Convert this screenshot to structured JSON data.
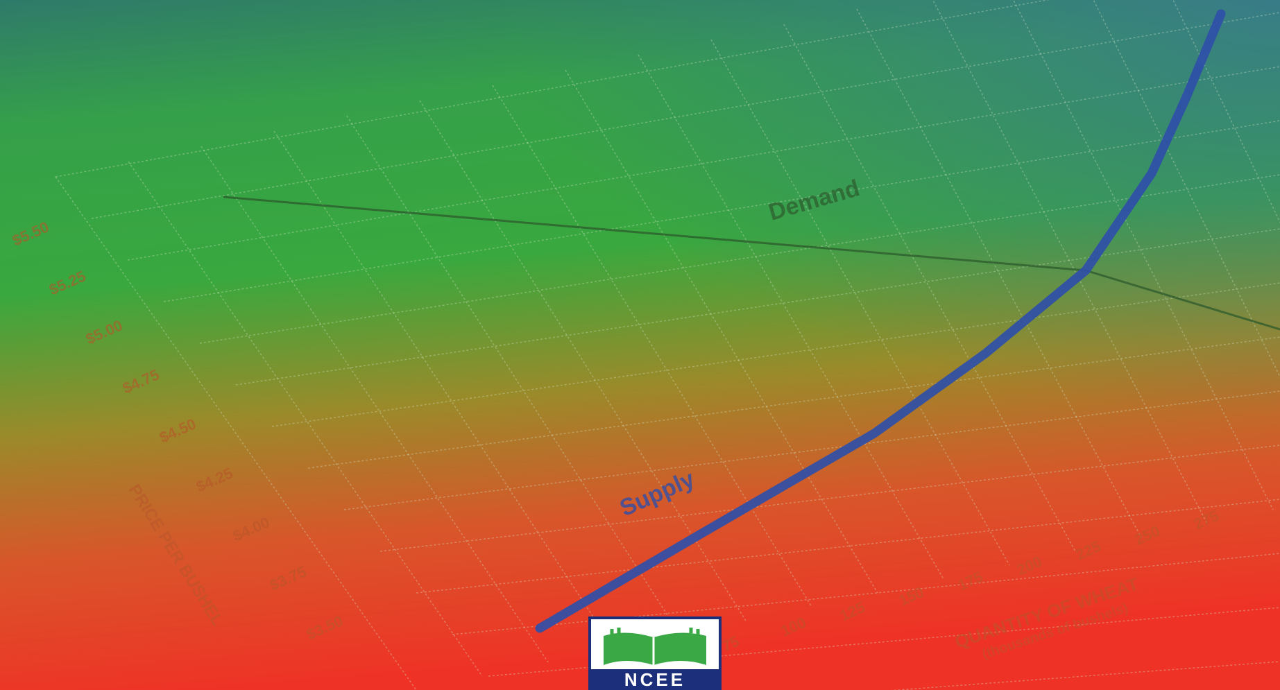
{
  "chart_data": {
    "type": "line",
    "y_tick_labels": [
      "$5.50",
      "$5.25",
      "$5.00",
      "$4.75",
      "$4.50",
      "$4.25",
      "$4.00",
      "$3.75",
      "$3.50"
    ],
    "y_axis_label": "PRICE PER BUSHEL",
    "x_tick_labels": [
      "75",
      "100",
      "125",
      "150",
      "175",
      "200",
      "225",
      "250",
      "275"
    ],
    "x_axis_label": "QUANTITY OF WHEAT",
    "x_axis_sublabel": "(thousands of bushels)",
    "series": [
      {
        "name": "Demand",
        "color": "#2c5a2c"
      },
      {
        "name": "Supply",
        "color": "#2f4fa8"
      }
    ]
  },
  "logo": {
    "text": "NCEE",
    "brand_color": "#1b2f7a",
    "book_color": "#3aa845"
  },
  "background": {
    "top": "#2f7a6a",
    "middle": "#37a844",
    "bottom": "#e8362a"
  }
}
